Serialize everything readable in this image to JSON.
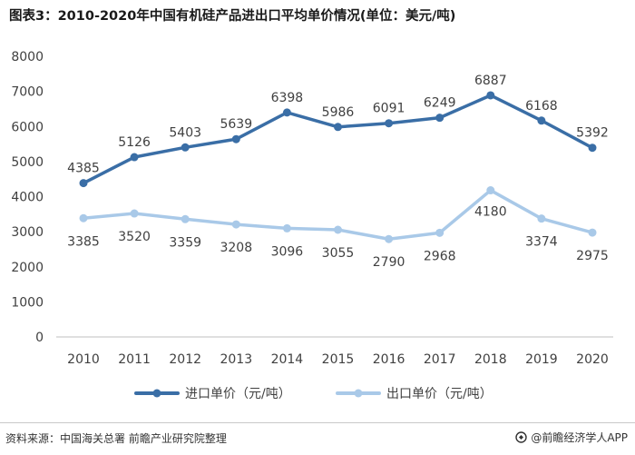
{
  "header": {
    "title": "图表3：2010-2020年中国有机硅产品进出口平均单价情况(单位：美元/吨)"
  },
  "footer": {
    "source": "资料来源：中国海关总署 前瞻产业研究院整理",
    "brand": "@前瞻经济学人APP",
    "brand_icon": "qianzhan-logo-icon"
  },
  "colors": {
    "import": "#3a6ea6",
    "export": "#a9c9e8",
    "grid_axis": "#bfbfbf",
    "text": "#404040"
  },
  "chart_data": {
    "type": "line",
    "title": "图表3：2010-2020年中国有机硅产品进出口平均单价情况(单位：美元/吨)",
    "xlabel": "",
    "ylabel": "",
    "categories": [
      "2010",
      "2011",
      "2012",
      "2013",
      "2014",
      "2015",
      "2016",
      "2017",
      "2018",
      "2019",
      "2020"
    ],
    "ylim": [
      0,
      8000
    ],
    "yticks": [
      "0",
      "1000",
      "2000",
      "3000",
      "4000",
      "5000",
      "6000",
      "7000",
      "8000"
    ],
    "grid": false,
    "legend_position": "bottom-center",
    "series": [
      {
        "name": "进口单价（元/吨）",
        "values": [
          4385,
          5126,
          5403,
          5639,
          6398,
          5986,
          6091,
          6249,
          6887,
          6168,
          5392
        ],
        "labels": [
          "4385",
          "5126",
          "5403",
          "5639",
          "6398",
          "5986",
          "6091",
          "6249",
          "6887",
          "6168",
          "5392"
        ]
      },
      {
        "name": "出口单价（元/吨）",
        "values": [
          3385,
          3520,
          3359,
          3208,
          3096,
          3055,
          2790,
          2968,
          4180,
          3374,
          2975
        ],
        "labels": [
          "3385",
          "3520",
          "3359",
          "3208",
          "3096",
          "3055",
          "2790",
          "2968",
          "4180",
          "3374",
          "2975"
        ]
      }
    ]
  }
}
